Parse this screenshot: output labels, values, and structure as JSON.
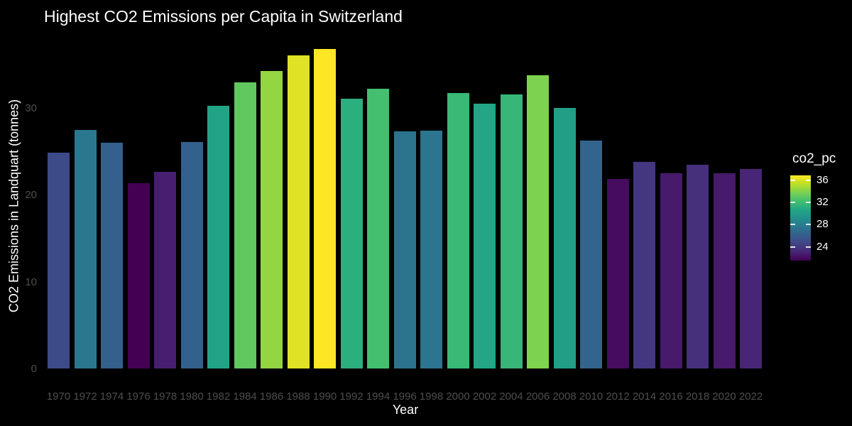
{
  "page": {
    "title": "Highest CO2 Emissions per Capita in Switzerland"
  },
  "chart_data": {
    "type": "bar",
    "title": "Highest CO2 Emissions per Capita in Switzerland",
    "xlabel": "Year",
    "ylabel": "CO2 Emissions in Landquart (tonnes)",
    "categories": [
      "1970",
      "1972",
      "1974",
      "1976",
      "1978",
      "1980",
      "1982",
      "1984",
      "1986",
      "1988",
      "1990",
      "1992",
      "1994",
      "1996",
      "1998",
      "2000",
      "2002",
      "2004",
      "2006",
      "2008",
      "2010",
      "2012",
      "2014",
      "2016",
      "2018",
      "2020",
      "2022"
    ],
    "values": [
      25.0,
      27.6,
      26.1,
      21.5,
      22.8,
      26.2,
      30.4,
      33.1,
      34.4,
      36.2,
      36.9,
      31.2,
      32.3,
      27.4,
      27.5,
      31.8,
      30.6,
      31.7,
      33.9,
      30.1,
      26.4,
      22.0,
      23.9,
      22.6,
      23.6,
      22.6,
      23.1
    ],
    "bar_colors": [
      "#3e4b89",
      "#2a778e",
      "#355f8d",
      "#440154",
      "#471e70",
      "#34608d",
      "#22a386",
      "#61c860",
      "#93d641",
      "#e0e325",
      "#fde725",
      "#2caf7e",
      "#44bf70",
      "#2c748e",
      "#2c758e",
      "#39b876",
      "#22a685",
      "#37b678",
      "#7dd24f",
      "#229e87",
      "#33648d",
      "#450c5f",
      "#44367f",
      "#471a6b",
      "#46307c",
      "#471a6b",
      "#482576"
    ],
    "ylim": [
      0,
      38.7
    ],
    "yticks": [
      0,
      10,
      20,
      30
    ],
    "grid": false,
    "legend_position": "right",
    "legend": {
      "title": "co2_pc",
      "ticks": [
        36,
        32,
        28,
        24
      ],
      "domain_min": 21.5,
      "domain_max": 36.9,
      "gradient_top_to_bottom": [
        "#fde725",
        "#bddf26",
        "#7ad151",
        "#44bf70",
        "#22a884",
        "#21918c",
        "#2a788e",
        "#355f8d",
        "#414487",
        "#482475",
        "#440154"
      ]
    },
    "colors": {
      "background": "#000000",
      "text": "#ffffff",
      "axis_tick_labels": "#4e4e4e"
    }
  }
}
